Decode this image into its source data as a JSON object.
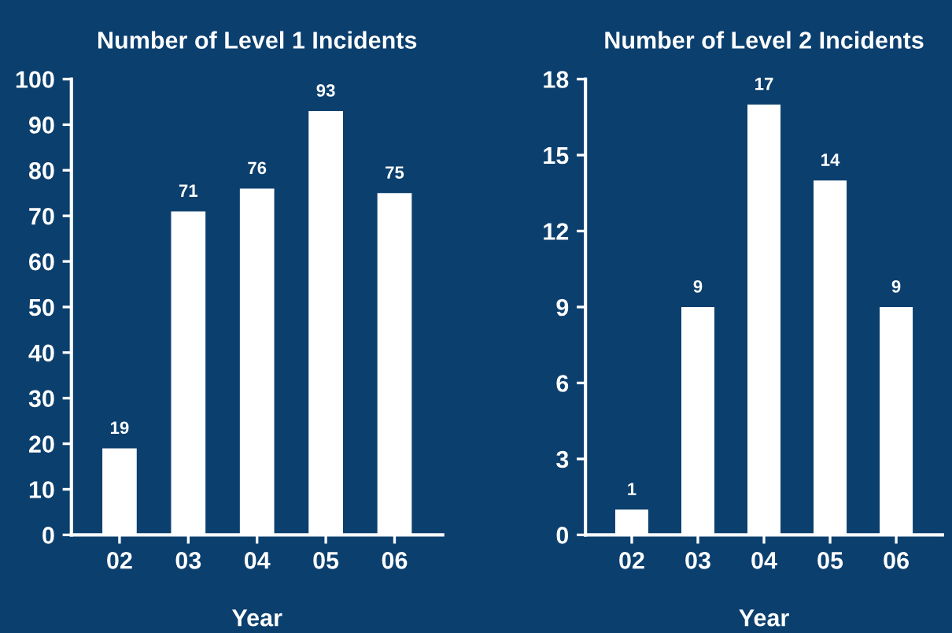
{
  "chart_data": [
    {
      "type": "bar",
      "title": "Number of Level 1 Incidents",
      "xlabel": "Year",
      "categories": [
        "02",
        "03",
        "04",
        "05",
        "06"
      ],
      "values": [
        19,
        71,
        76,
        93,
        75
      ],
      "color": "#ffffff",
      "ylim": [
        0,
        100
      ],
      "yticks": [
        0,
        10,
        20,
        30,
        40,
        50,
        60,
        70,
        80,
        90,
        100
      ],
      "data_labels": true,
      "grid": false
    },
    {
      "type": "bar",
      "title": "Number of Level 2 Incidents",
      "xlabel": "Year",
      "categories": [
        "02",
        "03",
        "04",
        "05",
        "06"
      ],
      "values": [
        1,
        9,
        17,
        14,
        9
      ],
      "color": "#ffffff",
      "ylim": [
        0,
        18
      ],
      "yticks": [
        0,
        3,
        6,
        9,
        12,
        15,
        18
      ],
      "data_labels": true,
      "grid": false
    }
  ]
}
